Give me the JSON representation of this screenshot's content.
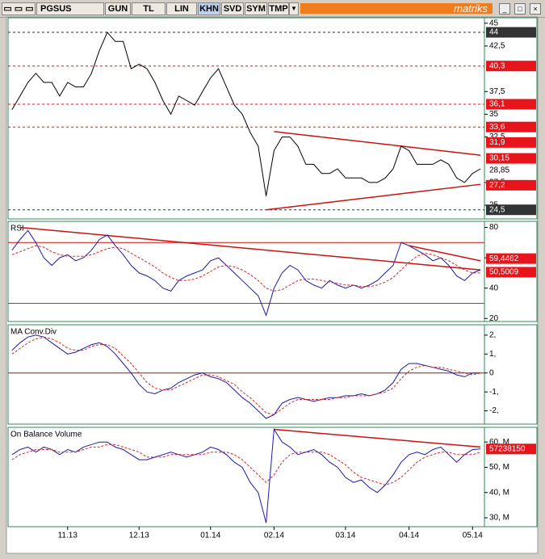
{
  "toolbar": {
    "symbol": "PGSUS",
    "buttons": [
      "GUN",
      "TL",
      "LIN",
      "KHN",
      "SVD",
      "SYM",
      "TMP"
    ],
    "brand": "matriks"
  },
  "chart_data": [
    {
      "type": "line",
      "ylim": [
        23.5,
        45.6
      ],
      "yticks": [
        45,
        {
          "value": 42.5,
          "label": "42,5"
        },
        {
          "value": 37.5,
          "label": "37,5"
        },
        35,
        {
          "value": 32.5,
          "label": "32,5"
        },
        {
          "value": 27.5,
          "label": "27,5"
        },
        25
      ],
      "series": [
        {
          "color": "#000000",
          "values": [
            35.5,
            37,
            38.5,
            39.5,
            38.5,
            38.5,
            37,
            38.5,
            38,
            38,
            39.5,
            42,
            44,
            43,
            43,
            40,
            40.5,
            40,
            38.5,
            36.5,
            35,
            37,
            36.5,
            36,
            37.5,
            39,
            40,
            38,
            36,
            35,
            33,
            31.5,
            26,
            31,
            32.5,
            32.5,
            31.5,
            29.5,
            29.5,
            28.5,
            28.5,
            29,
            28,
            28,
            28,
            27.5,
            27.5,
            28,
            29,
            31.5,
            31,
            29.5,
            29.5,
            29.5,
            30,
            29.5,
            28,
            27.5,
            28.5,
            29
          ]
        }
      ],
      "levels": [
        {
          "value": 44,
          "label": "44",
          "color": "#333333",
          "line": true
        },
        {
          "value": 40.3,
          "label": "40,3",
          "color": "#e8141c",
          "line": true
        },
        {
          "value": 36.1,
          "label": "36,1",
          "color": "#e8141c",
          "line": true
        },
        {
          "value": 33.6,
          "label": "33,6",
          "color": "#e8141c",
          "line": true
        },
        {
          "value": 31.9,
          "label": "31,9",
          "color": "#e8141c"
        },
        {
          "value": 30.15,
          "label": "30,15",
          "color": "#e8141c"
        },
        {
          "value": 28.85,
          "label": "28,85",
          "color": "#ffffff"
        },
        {
          "value": 27.2,
          "label": "27,2",
          "color": "#e8141c"
        },
        {
          "value": 24.5,
          "label": "24,5",
          "color": "#333333",
          "line": true
        }
      ],
      "trendlines": [
        {
          "color": "#cc1111",
          "points": [
            [
              33,
              33.1
            ],
            [
              59,
              30.5
            ]
          ]
        },
        {
          "color": "#cc1111",
          "points": [
            [
              32,
              24.5
            ],
            [
              59,
              27.3
            ]
          ]
        }
      ]
    },
    {
      "type": "line",
      "title": "RSI",
      "ylim": [
        18,
        84
      ],
      "yticks": [
        20,
        40,
        60,
        80
      ],
      "series": [
        {
          "color": "#1a1aa8",
          "values": [
            65,
            72,
            78,
            70,
            60,
            55,
            60,
            62,
            58,
            60,
            65,
            72,
            75,
            68,
            62,
            55,
            50,
            48,
            45,
            40,
            38,
            45,
            48,
            50,
            52,
            58,
            60,
            55,
            50,
            45,
            40,
            35,
            22,
            40,
            50,
            55,
            52,
            45,
            42,
            40,
            45,
            42,
            40,
            42,
            40,
            42,
            45,
            50,
            55,
            70,
            68,
            65,
            62,
            58,
            60,
            55,
            48,
            45,
            50,
            52
          ]
        },
        {
          "color": "#dd2222",
          "dashed": true,
          "values": [
            62,
            64,
            66,
            68,
            67,
            64,
            62,
            61,
            61,
            61,
            62,
            64,
            66,
            67,
            66,
            63,
            60,
            57,
            54,
            50,
            47,
            45,
            45,
            46,
            48,
            51,
            54,
            55,
            54,
            52,
            49,
            45,
            40,
            38,
            39,
            42,
            45,
            46,
            46,
            45,
            44,
            43,
            42,
            42,
            41,
            41,
            42,
            44,
            47,
            52,
            57,
            61,
            63,
            62,
            60,
            58,
            55,
            52,
            50,
            50
          ]
        }
      ],
      "levels": [
        {
          "value": 70,
          "color": "#cc1111",
          "line": true,
          "tag": false
        },
        {
          "value": 30,
          "color": "#2a7a2a",
          "line": true,
          "tag": false
        },
        {
          "value": 59.4462,
          "label": "59,4462",
          "color": "#e8141c"
        },
        {
          "value": 50.5009,
          "label": "50,5009",
          "color": "#e8141c"
        }
      ],
      "trendlines": [
        {
          "color": "#cc1111",
          "points": [
            [
              1,
              80
            ],
            [
              59,
              52
            ]
          ]
        },
        {
          "color": "#cc1111",
          "points": [
            [
              50,
              68
            ],
            [
              59,
              58
            ]
          ]
        }
      ]
    },
    {
      "type": "line",
      "title": "MA Conv.Div",
      "ylim": [
        -2.7,
        2.55
      ],
      "yticks": [
        {
          "value": 2,
          "label": "2,"
        },
        {
          "value": 1,
          "label": "1,"
        },
        0,
        {
          "value": -1,
          "label": "-1,"
        },
        {
          "value": -2,
          "label": "-2,"
        }
      ],
      "series": [
        {
          "color": "#1a1aa8",
          "values": [
            1.2,
            1.6,
            1.9,
            2.0,
            1.9,
            1.6,
            1.3,
            1.0,
            1.1,
            1.3,
            1.5,
            1.6,
            1.4,
            1.0,
            0.5,
            0,
            -0.6,
            -1.0,
            -1.1,
            -0.9,
            -0.8,
            -0.5,
            -0.3,
            -0.1,
            0.0,
            -0.2,
            -0.3,
            -0.5,
            -0.9,
            -1.3,
            -1.6,
            -2.0,
            -2.4,
            -2.2,
            -1.6,
            -1.4,
            -1.3,
            -1.4,
            -1.5,
            -1.4,
            -1.3,
            -1.3,
            -1.2,
            -1.2,
            -1.1,
            -1.2,
            -1.1,
            -0.9,
            -0.5,
            0.2,
            0.5,
            0.5,
            0.4,
            0.3,
            0.2,
            0.1,
            -0.1,
            -0.2,
            0.0,
            0.0
          ]
        },
        {
          "color": "#dd2222",
          "dashed": true,
          "values": [
            1.0,
            1.3,
            1.6,
            1.8,
            1.9,
            1.8,
            1.6,
            1.3,
            1.2,
            1.2,
            1.4,
            1.5,
            1.5,
            1.3,
            0.9,
            0.5,
            0.0,
            -0.5,
            -0.8,
            -0.9,
            -0.9,
            -0.7,
            -0.5,
            -0.3,
            -0.1,
            -0.1,
            -0.2,
            -0.4,
            -0.6,
            -1.0,
            -1.3,
            -1.7,
            -2.1,
            -2.2,
            -1.9,
            -1.6,
            -1.4,
            -1.4,
            -1.4,
            -1.4,
            -1.4,
            -1.3,
            -1.3,
            -1.2,
            -1.2,
            -1.2,
            -1.1,
            -1.0,
            -0.8,
            -0.3,
            0.1,
            0.3,
            0.4,
            0.3,
            0.3,
            0.2,
            0.1,
            0.0,
            -0.1,
            0.0
          ]
        }
      ],
      "levels": [
        {
          "value": 0,
          "color": "#8b1a1a",
          "line": true,
          "tag": false
        }
      ]
    },
    {
      "type": "line",
      "title": "On Balance Volume",
      "ylim": [
        26500000,
        65800000
      ],
      "yticks": [
        {
          "value": 60000000,
          "label": "60, M"
        },
        {
          "value": 50000000,
          "label": "50, M"
        },
        {
          "value": 40000000,
          "label": "40, M"
        },
        {
          "value": 30000000,
          "label": "30, M"
        }
      ],
      "categories": [
        null,
        null,
        null,
        null,
        null,
        null,
        null,
        "11.13",
        null,
        null,
        null,
        null,
        null,
        null,
        null,
        null,
        "12.13",
        null,
        null,
        null,
        null,
        null,
        null,
        null,
        null,
        "01.14",
        null,
        null,
        null,
        null,
        null,
        null,
        null,
        "02.14",
        null,
        null,
        null,
        null,
        null,
        null,
        null,
        null,
        "03.14",
        null,
        null,
        null,
        null,
        null,
        null,
        null,
        "04.14",
        null,
        null,
        null,
        null,
        null,
        null,
        null,
        "05.14",
        null
      ],
      "series": [
        {
          "color": "#1a1aa8",
          "values": [
            55000000,
            57000000,
            58000000,
            56000000,
            58000000,
            57000000,
            55000000,
            57000000,
            56000000,
            58000000,
            59000000,
            60000000,
            60000000,
            58000000,
            57000000,
            55000000,
            53000000,
            53000000,
            54000000,
            55000000,
            56000000,
            55000000,
            54000000,
            55000000,
            56000000,
            58000000,
            57000000,
            55000000,
            52000000,
            50000000,
            44000000,
            40000000,
            28000000,
            65000000,
            60000000,
            58000000,
            55000000,
            56000000,
            57000000,
            55000000,
            52000000,
            50000000,
            46000000,
            44000000,
            45000000,
            42000000,
            40000000,
            43000000,
            47000000,
            52000000,
            55000000,
            56000000,
            55000000,
            57000000,
            58000000,
            55000000,
            52000000,
            55000000,
            57000000,
            57238150
          ]
        },
        {
          "color": "#dd2222",
          "dashed": true,
          "values": [
            53000000,
            55000000,
            56000000,
            57000000,
            57000000,
            57000000,
            56000000,
            56000000,
            56000000,
            57000000,
            58000000,
            58000000,
            59000000,
            59000000,
            58000000,
            57000000,
            56000000,
            54000000,
            54000000,
            54000000,
            55000000,
            55000000,
            55000000,
            55000000,
            55000000,
            56000000,
            56000000,
            56000000,
            55000000,
            53000000,
            50000000,
            47000000,
            44000000,
            47000000,
            52000000,
            55000000,
            56000000,
            56000000,
            56000000,
            56000000,
            55000000,
            53000000,
            51000000,
            48000000,
            46000000,
            45000000,
            44000000,
            43000000,
            44000000,
            46000000,
            49000000,
            52000000,
            54000000,
            55000000,
            56000000,
            56000000,
            55000000,
            55000000,
            55000000,
            56000000
          ]
        }
      ],
      "levels": [
        {
          "value": 57238150,
          "color": "#e8141c"
        }
      ],
      "trendlines": [
        {
          "color": "#cc1111",
          "points": [
            [
              33,
              65000000
            ],
            [
              59,
              58000000
            ]
          ]
        }
      ]
    }
  ]
}
